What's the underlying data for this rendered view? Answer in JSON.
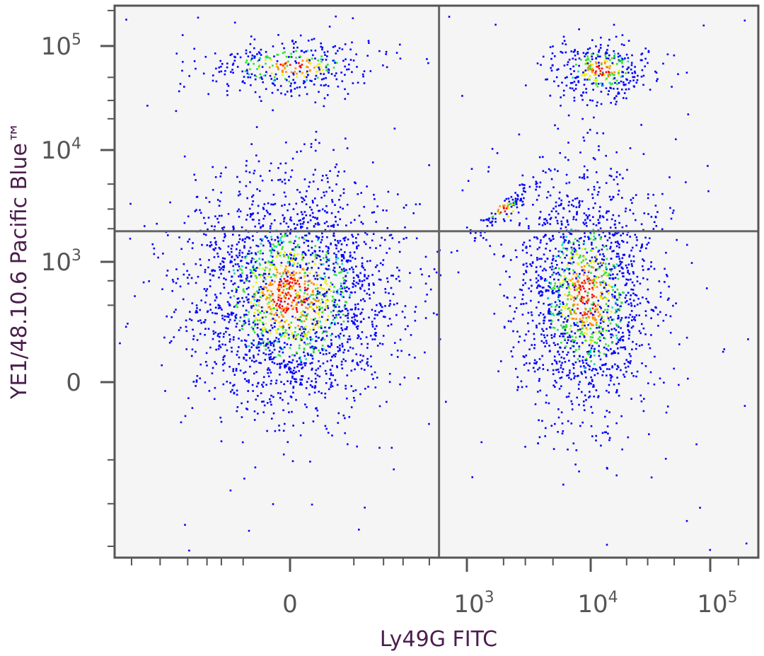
{
  "chart_data": {
    "type": "scatter",
    "subtype": "flow-cytometry-density-dot-plot",
    "xlabel": "Ly49G FITC",
    "ylabel": "YE1/48.10.6 Pacific Blue™",
    "x_scale": "biexponential",
    "y_scale": "biexponential",
    "x_ticks": [
      {
        "base": "0",
        "exp": ""
      },
      {
        "base": "10",
        "exp": "3"
      },
      {
        "base": "10",
        "exp": "4"
      },
      {
        "base": "10",
        "exp": "5"
      }
    ],
    "y_ticks": [
      {
        "base": "10",
        "exp": "5"
      },
      {
        "base": "10",
        "exp": "4"
      },
      {
        "base": "10",
        "exp": "3"
      },
      {
        "base": "0",
        "exp": ""
      }
    ],
    "quadrant_gate": {
      "x": 600,
      "y": 1900
    },
    "populations": [
      {
        "name": "",
        "x_center": 0,
        "y_center": 400,
        "relative_count": 0.46
      },
      {
        "name": "",
        "x_center": 9000,
        "y_center": 400,
        "relative_count": 0.33
      },
      {
        "name": "",
        "x_center": 0,
        "y_center": 65000,
        "relative_count": 0.07
      },
      {
        "name": "",
        "x_center": 12000,
        "y_center": 60000,
        "relative_count": 0.07
      },
      {
        "name": "",
        "x_center": 2000,
        "y_center": 3000,
        "relative_count": 0.02
      }
    ],
    "density_colors": [
      "#0000ff",
      "#00d8c8",
      "#29e629",
      "#f0f000",
      "#ff8c00",
      "#ff0000"
    ],
    "plot_background": "#f5f5f5",
    "grid": false,
    "legend": "none"
  }
}
